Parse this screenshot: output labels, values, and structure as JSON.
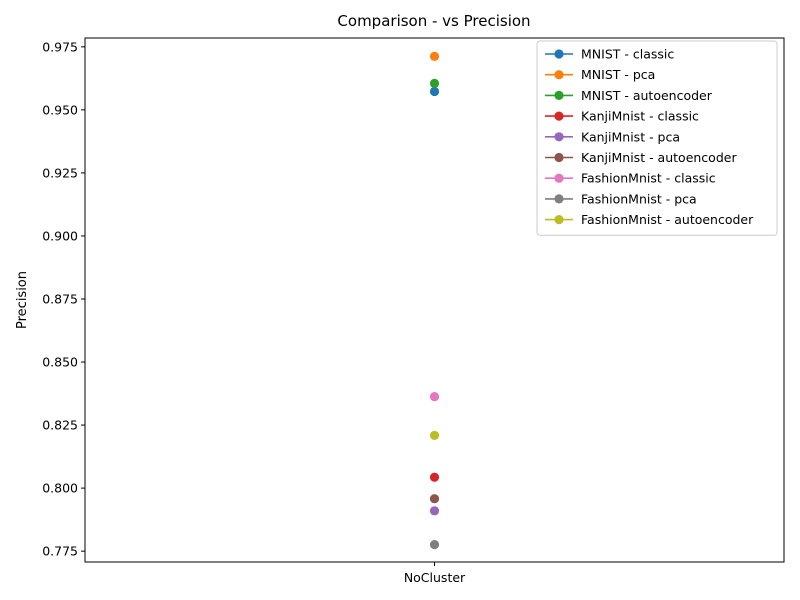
{
  "chart_data": {
    "type": "scatter",
    "title": "Comparison -  vs Precision",
    "xlabel": "",
    "ylabel": "Precision",
    "categories": [
      "NoCluster"
    ],
    "ylim": [
      0.7707,
      0.9785
    ],
    "yticks": [
      "0.775",
      "0.800",
      "0.825",
      "0.850",
      "0.875",
      "0.900",
      "0.925",
      "0.950",
      "0.975"
    ],
    "grid": false,
    "legend_position": "top-right",
    "series": [
      {
        "name": "MNIST - classic",
        "color": "#1f77b4",
        "values": [
          0.9573
        ]
      },
      {
        "name": "MNIST - pca",
        "color": "#ff7f0e",
        "values": [
          0.9712
        ]
      },
      {
        "name": "MNIST - autoencoder",
        "color": "#2ca02c",
        "values": [
          0.9605
        ]
      },
      {
        "name": "KanjiMnist - classic",
        "color": "#d62728",
        "values": [
          0.8043
        ]
      },
      {
        "name": "KanjiMnist - pca",
        "color": "#9467bd",
        "values": [
          0.791
        ]
      },
      {
        "name": "KanjiMnist - autoencoder",
        "color": "#8c564b",
        "values": [
          0.7958
        ]
      },
      {
        "name": "FashionMnist - classic",
        "color": "#e377c2",
        "values": [
          0.8363
        ]
      },
      {
        "name": "FashionMnist - pca",
        "color": "#7f7f7f",
        "values": [
          0.7776
        ]
      },
      {
        "name": "FashionMnist - autoencoder",
        "color": "#bcbd22",
        "values": [
          0.8209
        ]
      }
    ]
  }
}
